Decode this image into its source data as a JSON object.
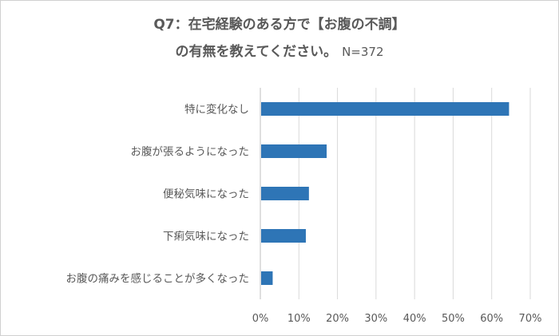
{
  "chart_data": {
    "type": "bar",
    "orientation": "horizontal",
    "title_line1": "Q7：在宅経験のある方で【お腹の不調】",
    "title_line2": "の有無を教えてください。",
    "title_n": "N=372",
    "categories": [
      "特に変化なし",
      "お腹が張るようになった",
      "便秘気味になった",
      "下痢気味になった",
      "お腹の痛みを感じることが多くなった"
    ],
    "values": [
      64.5,
      17.2,
      12.6,
      11.8,
      3.2
    ],
    "xlim": [
      0,
      70
    ],
    "xticks": [
      "0%",
      "10%",
      "20%",
      "30%",
      "40%",
      "50%",
      "60%",
      "70%"
    ],
    "bar_color": "#2e75b6",
    "grid": "vertical"
  }
}
